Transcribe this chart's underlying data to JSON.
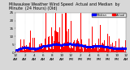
{
  "title_left": "Milwaukee Weather Wind Speed  Actual and Median",
  "background_color": "#d8d8d8",
  "plot_bg_color": "#ffffff",
  "bar_color": "#ff0000",
  "median_color": "#0000ff",
  "ylim": [
    0,
    25
  ],
  "xlim": [
    0,
    1440
  ],
  "seed": 42,
  "legend_actual_color": "#ff0000",
  "legend_median_color": "#0000ff",
  "figsize": [
    1.6,
    0.87
  ],
  "dpi": 100,
  "grid_color": "#bbbbbb",
  "title_fontsize": 3.5,
  "tick_fontsize": 3.0,
  "n_minutes": 1440
}
